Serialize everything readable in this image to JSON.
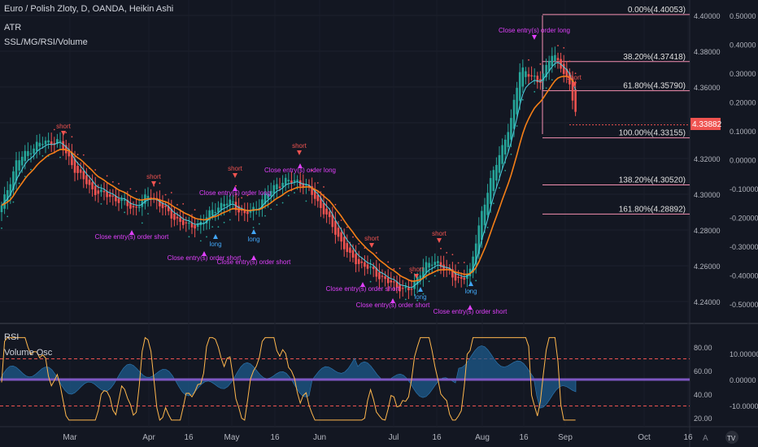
{
  "header": {
    "title": "Euro / Polish Zloty, D, OANDA, Heikin Ashi",
    "indicator_1": "ATR",
    "indicator_2": "SSL/MG/RSI/Volume"
  },
  "lower_pane": {
    "indicator_1": "RSI",
    "indicator_2": "Volume Osc"
  },
  "last_price_badge": "4.33882",
  "colors": {
    "background": "#131722",
    "up_candle": "#26a69a",
    "down_candle": "#ef5350",
    "ma_orange": "#f57f17",
    "ma_cyan": "#4dd0e1",
    "fib_line": "#f48fb1",
    "signal_text": "#e040fb",
    "long_text": "#42a5f5",
    "short_text": "#ef5350",
    "rsi_line": "#ffb74d",
    "volume_fill": "#1e5b8c",
    "zero_band": "#7e57c2",
    "dashed": "#ef5350",
    "axis_text": "#b2b5be"
  },
  "chart_data": [
    {
      "type": "candlestick",
      "title": "Euro / Polish Zloty, D, OANDA, Heikin Ashi",
      "price_axis": {
        "range": [
          4.232,
          4.406
        ],
        "ticks": [
          4.4,
          4.38,
          4.36,
          4.34,
          4.32,
          4.3,
          4.28,
          4.26,
          4.24
        ],
        "tick_labels": [
          "4.40000",
          "4.38000",
          "4.36000",
          "4.34000",
          "4.32000",
          "4.30000",
          "4.28000",
          "4.26000",
          "4.24000"
        ]
      },
      "atr_axis": {
        "ticks": [
          0.5,
          0.4,
          0.3,
          0.2,
          0.1,
          0.0,
          -0.1,
          -0.2,
          -0.3,
          -0.4,
          -0.5
        ],
        "tick_labels": [
          "0.50000",
          "0.40000",
          "0.30000",
          "0.20000",
          "0.10000",
          "0.00000",
          "-0.10000",
          "-0.20000",
          "-0.30000",
          "-0.40000",
          "-0.50000"
        ]
      },
      "time_axis": {
        "labels": [
          "Mar",
          "Apr",
          "16",
          "May",
          "16",
          "Jun",
          "Jul",
          "16",
          "Aug",
          "16",
          "Sep",
          "Oct",
          "16"
        ]
      },
      "fibonacci": [
        {
          "label": "0.00%(4.40053)",
          "price": 4.40053
        },
        {
          "label": "38.20%(4.37418)",
          "price": 4.37418
        },
        {
          "label": "61.80%(4.35790)",
          "price": 4.3579
        },
        {
          "label": "100.00%(4.33155)",
          "price": 4.33155
        },
        {
          "label": "138.20%(4.30520)",
          "price": 4.3052
        },
        {
          "label": "161.80%(4.28892)",
          "price": 4.28892
        }
      ],
      "last_price": 4.33882,
      "signals": [
        {
          "text": "short",
          "kind": "short"
        },
        {
          "text": "short",
          "kind": "short"
        },
        {
          "text": "short",
          "kind": "short"
        },
        {
          "text": "short",
          "kind": "short"
        },
        {
          "text": "short",
          "kind": "short"
        },
        {
          "text": "short",
          "kind": "short"
        },
        {
          "text": "short",
          "kind": "short"
        },
        {
          "text": "short",
          "kind": "short"
        },
        {
          "text": "long",
          "kind": "long"
        },
        {
          "text": "long",
          "kind": "long"
        },
        {
          "text": "long",
          "kind": "long"
        },
        {
          "text": "long",
          "kind": "long"
        },
        {
          "text": "Close entry(s) order short",
          "kind": "close"
        },
        {
          "text": "Close entry(s) order short",
          "kind": "close"
        },
        {
          "text": "Close entry(s) order long",
          "kind": "close"
        },
        {
          "text": "Close entry(s) order short",
          "kind": "close"
        },
        {
          "text": "Close entry(s) order long",
          "kind": "close"
        },
        {
          "text": "Close entry(s) order short",
          "kind": "close"
        },
        {
          "text": "Close entry(s) order short",
          "kind": "close"
        },
        {
          "text": "Close entry(s) order short",
          "kind": "close"
        },
        {
          "text": "Close entry(s) order long",
          "kind": "close"
        }
      ]
    },
    {
      "type": "line",
      "title": "RSI",
      "rsi_axis": {
        "ticks": [
          80,
          60,
          40,
          20
        ],
        "tick_labels": [
          "80.00",
          "60.00",
          "40.00",
          "20.00"
        ],
        "dashed_levels": [
          70,
          30
        ]
      },
      "vol_axis": {
        "ticks": [
          10,
          0,
          -10
        ],
        "tick_labels": [
          "10.00000",
          "0.00000",
          "-10.00000"
        ]
      },
      "series": [
        {
          "name": "RSI"
        },
        {
          "name": "Volume Osc"
        }
      ]
    }
  ]
}
